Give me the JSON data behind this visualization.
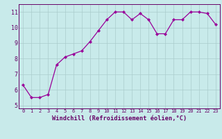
{
  "x": [
    0,
    1,
    2,
    3,
    4,
    5,
    6,
    7,
    8,
    9,
    10,
    11,
    12,
    13,
    14,
    15,
    16,
    17,
    18,
    19,
    20,
    21,
    22,
    23
  ],
  "y": [
    6.3,
    5.5,
    5.5,
    5.7,
    7.6,
    8.1,
    8.3,
    8.5,
    9.1,
    9.8,
    10.5,
    11.0,
    11.0,
    10.5,
    10.9,
    10.5,
    9.6,
    9.6,
    10.5,
    10.5,
    11.0,
    11.0,
    10.9,
    10.2
  ],
  "line_color": "#990099",
  "marker": "D",
  "marker_size": 2.2,
  "bg_color": "#c8eaea",
  "grid_color": "#aacccc",
  "tick_color": "#660066",
  "label_color": "#660066",
  "xlabel": "Windchill (Refroidissement éolien,°C)",
  "ylim": [
    4.8,
    11.5
  ],
  "xlim": [
    -0.5,
    23.5
  ],
  "yticks": [
    5,
    6,
    7,
    8,
    9,
    10,
    11
  ],
  "xticks": [
    0,
    1,
    2,
    3,
    4,
    5,
    6,
    7,
    8,
    9,
    10,
    11,
    12,
    13,
    14,
    15,
    16,
    17,
    18,
    19,
    20,
    21,
    22,
    23
  ],
  "x_fontsize": 5.0,
  "y_fontsize": 6.0,
  "xlabel_fontsize": 6.2,
  "linewidth": 0.9
}
